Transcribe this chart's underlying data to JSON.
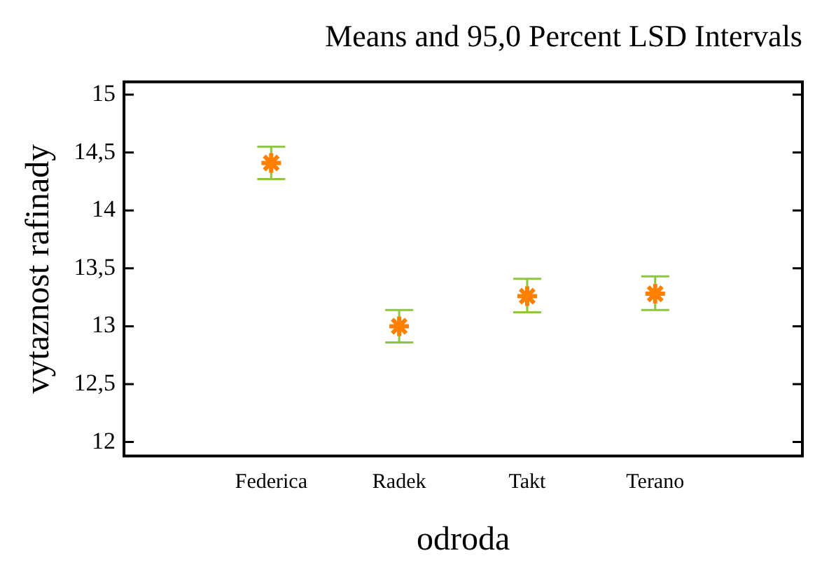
{
  "chart_data": {
    "type": "scatter",
    "title": "Means and 95,0 Percent LSD Intervals",
    "xlabel": "odroda",
    "ylabel": "vytaznost rafinady",
    "categories": [
      "Federica",
      "Radek",
      "Takt",
      "Terano"
    ],
    "series": [
      {
        "color": "#ff7f00",
        "values": [
          14.41,
          13.0,
          13.26,
          13.28
        ],
        "errors": [
          [
            14.27,
            14.55
          ],
          [
            12.86,
            13.14
          ],
          [
            13.12,
            13.41
          ],
          [
            13.14,
            13.43
          ]
        ]
      }
    ],
    "marker": "cross",
    "ylim": [
      11.88,
      15.11
    ],
    "yticks": [
      12,
      {
        "value": 12.5,
        "label": "12,5"
      },
      13,
      {
        "value": 13.5,
        "label": "13,5"
      },
      14,
      {
        "value": 14.5,
        "label": "14,5"
      },
      15
    ],
    "grid": false,
    "legend": false
  }
}
